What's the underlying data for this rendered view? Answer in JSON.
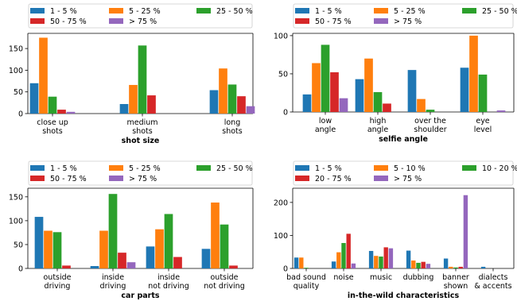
{
  "colors": [
    "#1f77b4",
    "#ff7f0e",
    "#2ca02c",
    "#d62728",
    "#9467bd"
  ],
  "chart_data": [
    {
      "type": "bar",
      "xlabel": "shot size",
      "categories": [
        "close up\nshots",
        "medium\nshots",
        "long\nshots"
      ],
      "ylim": [
        0,
        185
      ],
      "yticks": [
        0,
        50,
        100,
        150
      ],
      "legend_location": "top",
      "series": [
        {
          "name": "1 - 5 %",
          "values": [
            70,
            22,
            54
          ]
        },
        {
          "name": "5 - 25 %",
          "values": [
            175,
            66,
            104
          ]
        },
        {
          "name": "25 - 50 %",
          "values": [
            39,
            157,
            67
          ]
        },
        {
          "name": "50 - 75 %",
          "values": [
            9,
            42,
            40
          ]
        },
        {
          "name": "> 75 %",
          "values": [
            4,
            0,
            17
          ]
        }
      ]
    },
    {
      "type": "bar",
      "xlabel": "selfie angle",
      "categories": [
        "low\nangle",
        "high\nangle",
        "over the\nshoulder",
        "eye\nlevel"
      ],
      "ylim": [
        0,
        103
      ],
      "yticks": [
        0,
        50,
        100
      ],
      "legend_location": "top",
      "series": [
        {
          "name": "1 - 5 %",
          "values": [
            23,
            43,
            55,
            58
          ]
        },
        {
          "name": "5 - 25 %",
          "values": [
            64,
            70,
            17,
            100
          ]
        },
        {
          "name": "25 - 50 %",
          "values": [
            88,
            26,
            3,
            49
          ]
        },
        {
          "name": "50 - 75 %",
          "values": [
            52,
            11,
            0,
            0
          ]
        },
        {
          "name": "> 75 %",
          "values": [
            18,
            0,
            0,
            2
          ]
        }
      ]
    },
    {
      "type": "bar",
      "xlabel": "car parts",
      "categories": [
        "outside\ndriving",
        "inside\ndriving",
        "inside\nnot driving",
        "outside\nnot driving"
      ],
      "ylim": [
        0,
        168
      ],
      "yticks": [
        0,
        50,
        100,
        150
      ],
      "legend_location": "top",
      "series": [
        {
          "name": "1 - 5 %",
          "values": [
            108,
            5,
            46,
            41
          ]
        },
        {
          "name": "5 - 25 %",
          "values": [
            79,
            79,
            82,
            138
          ]
        },
        {
          "name": "25 - 50 %",
          "values": [
            76,
            156,
            114,
            92
          ]
        },
        {
          "name": "50 - 75 %",
          "values": [
            6,
            33,
            24,
            6
          ]
        },
        {
          "name": "> 75 %",
          "values": [
            0,
            13,
            0,
            0
          ]
        }
      ]
    },
    {
      "type": "bar",
      "xlabel": "in-the-wild characteristics",
      "categories": [
        "bad sound\nquality",
        "noise",
        "music",
        "dubbing",
        "banner\nshown",
        "dialects\n& accents"
      ],
      "ylim": [
        0,
        243
      ],
      "yticks": [
        0,
        100,
        200
      ],
      "legend_location": "top",
      "series": [
        {
          "name": "1 - 5 %",
          "values": [
            33,
            21,
            53,
            54,
            30,
            5
          ]
        },
        {
          "name": "5 - 10 %",
          "values": [
            33,
            49,
            38,
            24,
            5,
            0
          ]
        },
        {
          "name": "10 - 20 %",
          "values": [
            2,
            77,
            36,
            17,
            3,
            0
          ]
        },
        {
          "name": "20 - 75 %",
          "values": [
            0,
            105,
            64,
            20,
            5,
            0
          ]
        },
        {
          "name": "> 75 %",
          "values": [
            0,
            15,
            61,
            14,
            222,
            0
          ]
        }
      ]
    }
  ]
}
